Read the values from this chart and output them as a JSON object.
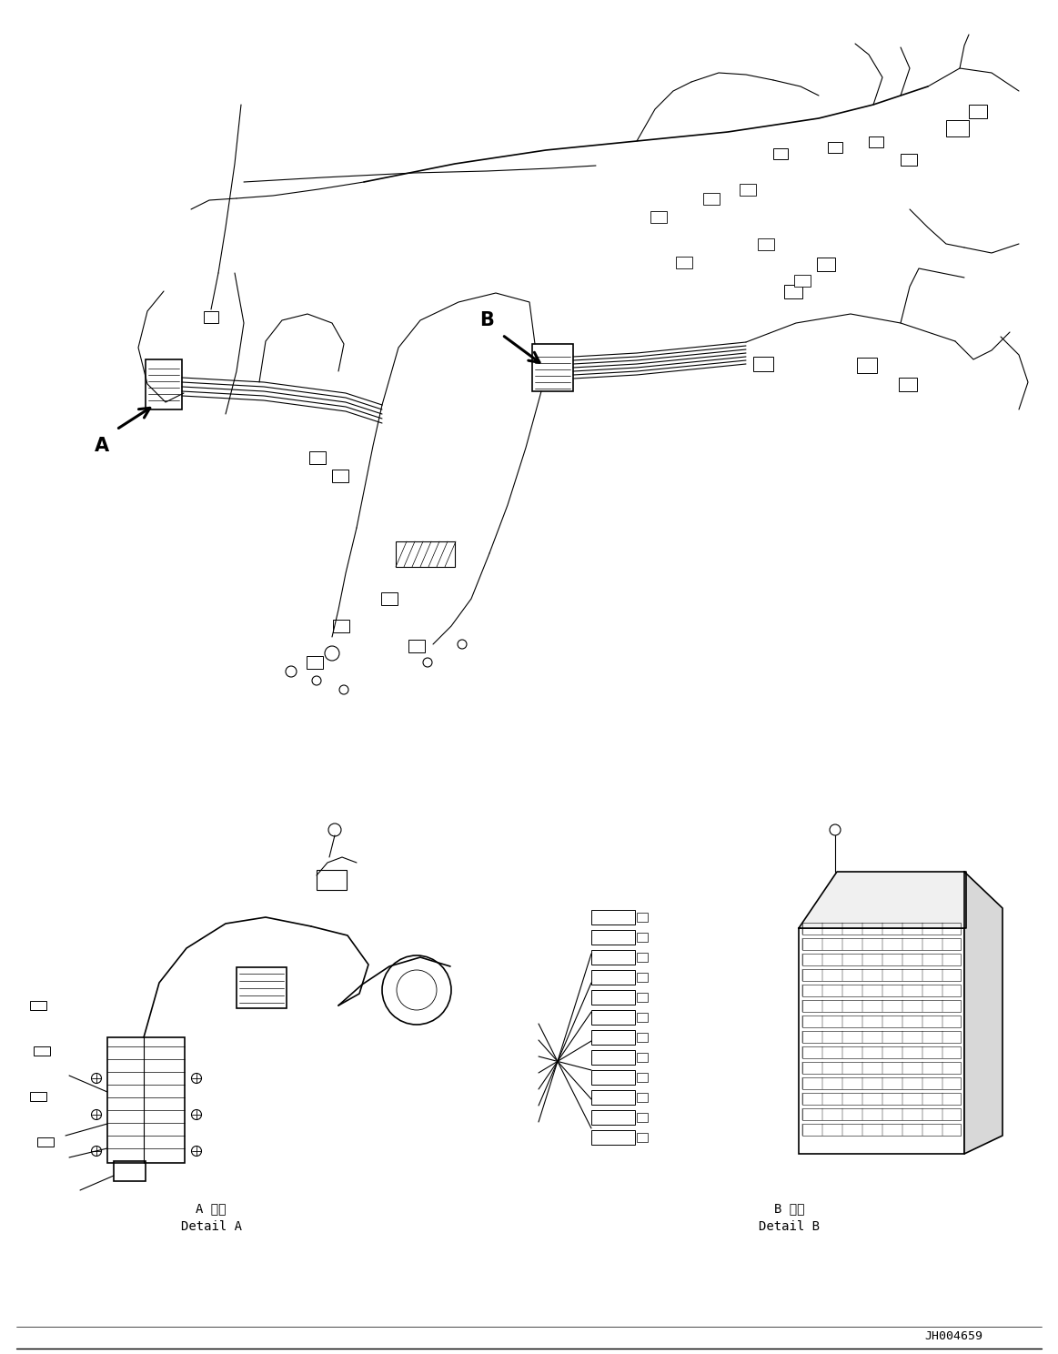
{
  "background_color": "#ffffff",
  "line_color": "#000000",
  "part_number": "JH004659",
  "label_A": "A",
  "label_B": "B",
  "detail_A_text_line1": "A 詳細",
  "detail_A_text_line2": "Detail A",
  "detail_B_text_line1": "B 詳細",
  "detail_B_text_line2": "Detail B",
  "fig_width": 11.63,
  "fig_height": 14.88,
  "dpi": 100
}
